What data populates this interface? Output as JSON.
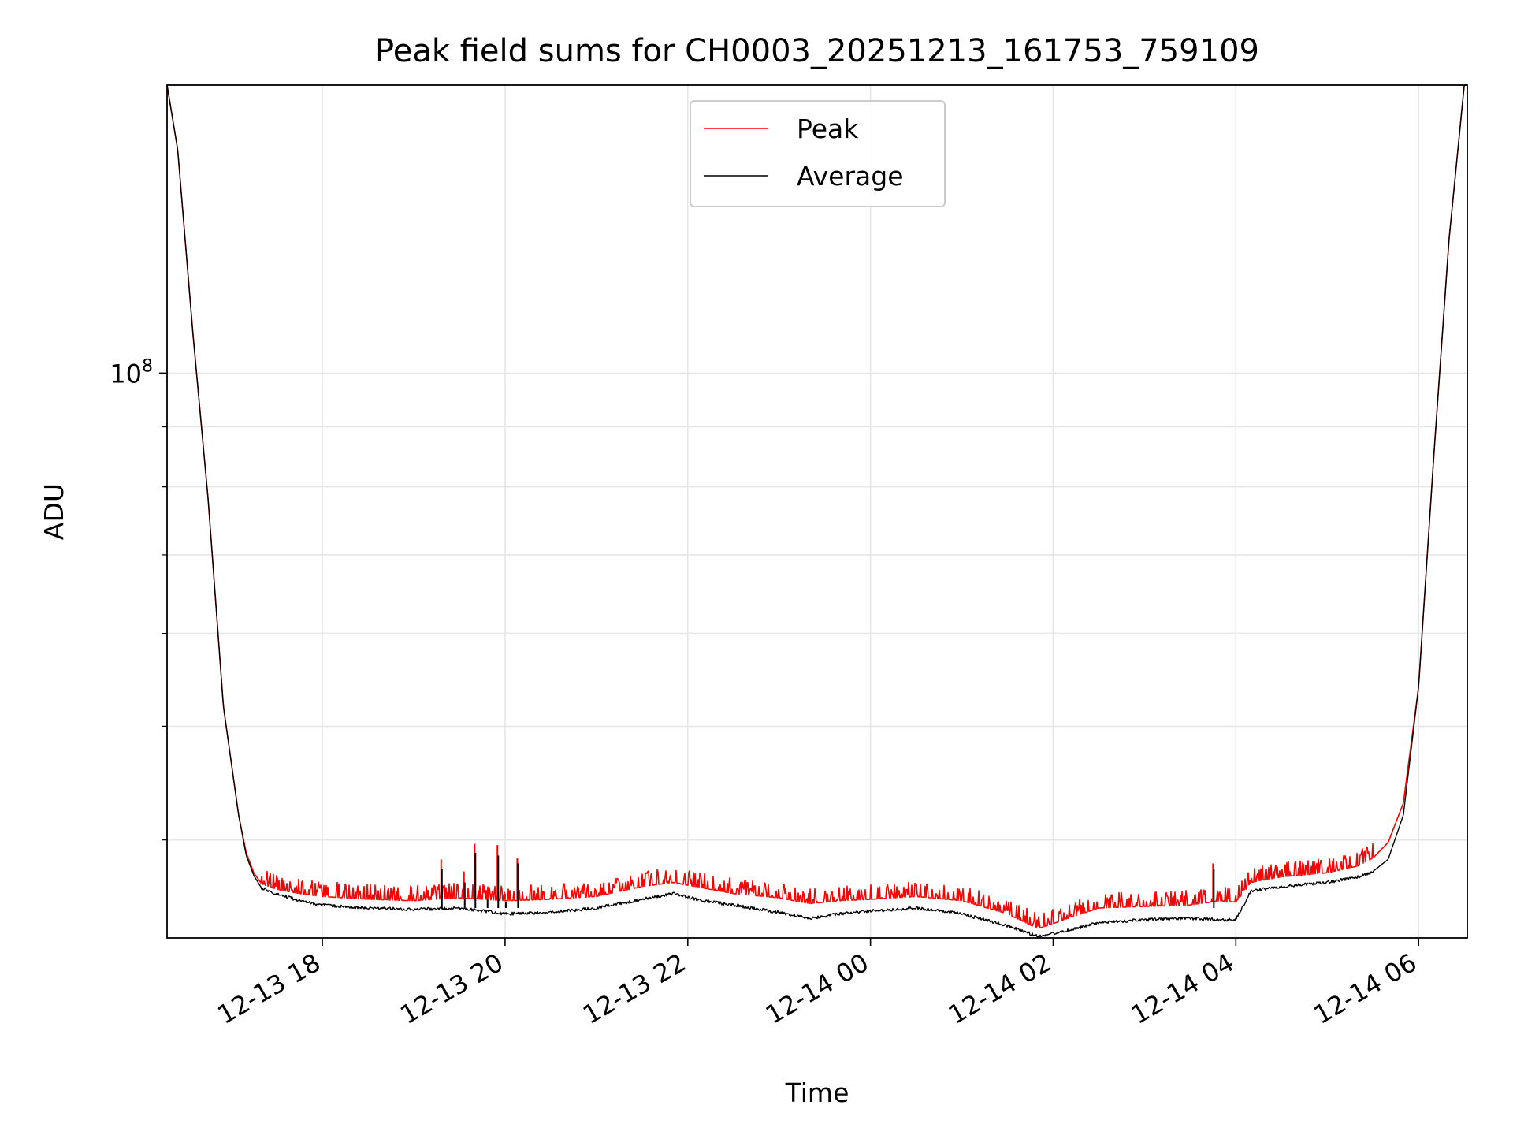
{
  "chart_data": {
    "type": "line",
    "title": "Peak field sums for CH0003_20251213_161753_759109",
    "xlabel": "Time",
    "ylabel": "ADU",
    "y_scale": "log",
    "ylim": [
      33000000.0,
      176000000.0
    ],
    "xlim": [
      "2025-12-13 16:18",
      "2025-12-14 06:32"
    ],
    "x_tick_labels": [
      "12-13 18",
      "12-13 20",
      "12-13 22",
      "12-14 00",
      "12-14 02",
      "12-14 04",
      "12-14 06"
    ],
    "x_ticks": [
      "2025-12-13 18:00",
      "2025-12-13 20:00",
      "2025-12-13 22:00",
      "2025-12-14 00:00",
      "2025-12-14 02:00",
      "2025-12-14 04:00",
      "2025-12-14 06:00"
    ],
    "y_major_ticks": [
      {
        "value": 100000000,
        "label_base": "10",
        "label_exp": "8"
      }
    ],
    "y_minor_ticks": [
      40000000.0,
      50000000.0,
      60000000.0,
      70000000.0,
      80000000.0,
      90000000.0,
      200000000.0
    ],
    "grid": true,
    "legend_position": "top-center",
    "series": [
      {
        "name": "Peak",
        "color": "#ff0000",
        "x": [
          "2025-12-13 16:18",
          "2025-12-13 16:25",
          "2025-12-13 16:35",
          "2025-12-13 16:45",
          "2025-12-13 16:55",
          "2025-12-13 17:05",
          "2025-12-13 17:10",
          "2025-12-13 17:15",
          "2025-12-13 17:20",
          "2025-12-13 17:30",
          "2025-12-13 17:45",
          "2025-12-13 18:00",
          "2025-12-13 18:30",
          "2025-12-13 19:00",
          "2025-12-13 19:30",
          "2025-12-13 20:00",
          "2025-12-13 20:30",
          "2025-12-13 21:00",
          "2025-12-13 21:30",
          "2025-12-13 21:50",
          "2025-12-13 22:10",
          "2025-12-13 22:30",
          "2025-12-13 23:00",
          "2025-12-13 23:20",
          "2025-12-13 23:40",
          "2025-12-14 00:00",
          "2025-12-14 00:30",
          "2025-12-14 01:00",
          "2025-12-14 01:30",
          "2025-12-14 01:50",
          "2025-12-14 02:10",
          "2025-12-14 02:30",
          "2025-12-14 03:00",
          "2025-12-14 03:30",
          "2025-12-14 03:50",
          "2025-12-14 04:00",
          "2025-12-14 04:10",
          "2025-12-14 04:30",
          "2025-12-14 05:00",
          "2025-12-14 05:20",
          "2025-12-14 05:30",
          "2025-12-14 05:40",
          "2025-12-14 05:50",
          "2025-12-14 06:00",
          "2025-12-14 06:10",
          "2025-12-14 06:20",
          "2025-12-14 06:30"
        ],
        "y": [
          176000000.0,
          155000000.0,
          108000000.0,
          78000000.0,
          52000000.0,
          42000000.0,
          39000000.0,
          37500000.0,
          36700000.0,
          36300000.0,
          36000000.0,
          35800000.0,
          35600000.0,
          35500000.0,
          35700000.0,
          35500000.0,
          35600000.0,
          35800000.0,
          36500000.0,
          36800000.0,
          36400000.0,
          36000000.0,
          35700000.0,
          35300000.0,
          35500000.0,
          35600000.0,
          35800000.0,
          35500000.0,
          34600000.0,
          33600000.0,
          34300000.0,
          35000000.0,
          35100000.0,
          35200000.0,
          35500000.0,
          35400000.0,
          36800000.0,
          37200000.0,
          37500000.0,
          38000000.0,
          38600000.0,
          39800000.0,
          43000000.0,
          54000000.0,
          85000000.0,
          130000000.0,
          176000000.0
        ]
      },
      {
        "name": "Average",
        "color": "#000000",
        "x": [
          "2025-12-13 16:18",
          "2025-12-13 16:25",
          "2025-12-13 16:35",
          "2025-12-13 16:45",
          "2025-12-13 16:55",
          "2025-12-13 17:05",
          "2025-12-13 17:10",
          "2025-12-13 17:15",
          "2025-12-13 17:20",
          "2025-12-13 17:30",
          "2025-12-13 17:45",
          "2025-12-13 18:00",
          "2025-12-13 18:30",
          "2025-12-13 19:00",
          "2025-12-13 19:30",
          "2025-12-13 20:00",
          "2025-12-13 20:30",
          "2025-12-13 21:00",
          "2025-12-13 21:30",
          "2025-12-13 21:50",
          "2025-12-13 22:10",
          "2025-12-13 22:30",
          "2025-12-13 23:00",
          "2025-12-13 23:20",
          "2025-12-13 23:40",
          "2025-12-14 00:00",
          "2025-12-14 00:30",
          "2025-12-14 01:00",
          "2025-12-14 01:30",
          "2025-12-14 01:50",
          "2025-12-14 02:10",
          "2025-12-14 02:30",
          "2025-12-14 03:00",
          "2025-12-14 03:30",
          "2025-12-14 03:50",
          "2025-12-14 04:00",
          "2025-12-14 04:10",
          "2025-12-14 04:30",
          "2025-12-14 05:00",
          "2025-12-14 05:20",
          "2025-12-14 05:30",
          "2025-12-14 05:40",
          "2025-12-14 05:50",
          "2025-12-14 06:00",
          "2025-12-14 06:10",
          "2025-12-14 06:20",
          "2025-12-14 06:30"
        ],
        "y": [
          176000000.0,
          155000000.0,
          108000000.0,
          78000000.0,
          52000000.0,
          42000000.0,
          38800000.0,
          37300000.0,
          36400000.0,
          36000000.0,
          35500000.0,
          35200000.0,
          35000000.0,
          34900000.0,
          35000000.0,
          34600000.0,
          34700000.0,
          35000000.0,
          35600000.0,
          36000000.0,
          35500000.0,
          35200000.0,
          34700000.0,
          34300000.0,
          34600000.0,
          34800000.0,
          35000000.0,
          34600000.0,
          33800000.0,
          33100000.0,
          33500000.0,
          34000000.0,
          34200000.0,
          34300000.0,
          34200000.0,
          34200000.0,
          36200000.0,
          36500000.0,
          36800000.0,
          37200000.0,
          37600000.0,
          38500000.0,
          42000000.0,
          54000000.0,
          85000000.0,
          130000000.0,
          176000000.0
        ]
      }
    ],
    "annotations": [
      {
        "x": "2025-12-13 19:18",
        "peak": 38500000.0,
        "avg": 37800000.0
      },
      {
        "x": "2025-12-13 19:33",
        "peak": 37600000.0,
        "avg": 36800000.0
      },
      {
        "x": "2025-12-13 19:40",
        "peak": 39700000.0,
        "avg": 39000000.0
      },
      {
        "x": "2025-12-13 19:48",
        "peak": 36200000.0,
        "avg": 35600000.0
      },
      {
        "x": "2025-12-13 19:55",
        "peak": 39600000.0,
        "avg": 38800000.0
      },
      {
        "x": "2025-12-13 20:00",
        "peak": 36000000.0,
        "avg": 35400000.0
      },
      {
        "x": "2025-12-13 20:08",
        "peak": 38600000.0,
        "avg": 38200000.0
      },
      {
        "x": "2025-12-14 03:45",
        "peak": 38200000.0,
        "avg": 37800000.0
      }
    ]
  }
}
